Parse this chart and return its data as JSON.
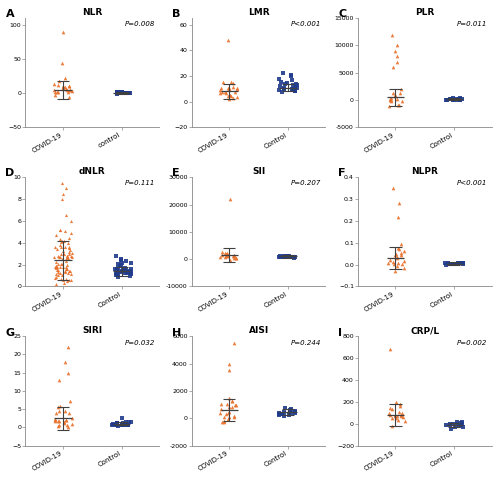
{
  "panels": [
    {
      "label": "A",
      "title": "NLR",
      "pvalue": "P=0.008",
      "ylim": [
        -50,
        110
      ],
      "yticks": [
        -50,
        0,
        50,
        100
      ],
      "groups": [
        {
          "name": "COVID-19",
          "color": "#E8702A",
          "marker": "^",
          "mean": 5,
          "sd": 13,
          "n_cluster": 20,
          "cluster_mean": 4,
          "cluster_sd": 5,
          "outliers": [
            90,
            45,
            22,
            18
          ]
        },
        {
          "name": "control",
          "color": "#1F3B8C",
          "marker": "s",
          "mean": 1,
          "sd": 1.5,
          "n_cluster": 18,
          "cluster_mean": 1,
          "cluster_sd": 0.8,
          "outliers": []
        }
      ]
    },
    {
      "label": "B",
      "title": "LMR",
      "pvalue": "P<0.001",
      "ylim": [
        -20,
        65
      ],
      "yticks": [
        -20,
        0,
        20,
        40,
        60
      ],
      "groups": [
        {
          "name": "COVID-19",
          "color": "#E8702A",
          "marker": "^",
          "mean": 8,
          "sd": 6,
          "n_cluster": 22,
          "cluster_mean": 7,
          "cluster_sd": 4,
          "outliers": [
            48
          ]
        },
        {
          "name": "Control",
          "color": "#1F3B8C",
          "marker": "s",
          "mean": 11,
          "sd": 3,
          "n_cluster": 20,
          "cluster_mean": 11,
          "cluster_sd": 2.5,
          "outliers": [
            22,
            21,
            20
          ]
        }
      ]
    },
    {
      "label": "C",
      "title": "PLR",
      "pvalue": "P=0.011",
      "ylim": [
        -5000,
        15000
      ],
      "yticks": [
        -5000,
        0,
        5000,
        10000,
        15000
      ],
      "groups": [
        {
          "name": "COVID-19",
          "color": "#E8702A",
          "marker": "^",
          "mean": 500,
          "sd": 1500,
          "n_cluster": 15,
          "cluster_mean": 400,
          "cluster_sd": 800,
          "outliers": [
            12000,
            10000,
            9000,
            8000,
            7000,
            6000
          ]
        },
        {
          "name": "Control",
          "color": "#1F3B8C",
          "marker": "s",
          "mean": 200,
          "sd": 200,
          "n_cluster": 14,
          "cluster_mean": 150,
          "cluster_sd": 150,
          "outliers": []
        }
      ]
    },
    {
      "label": "D",
      "title": "dNLR",
      "pvalue": "P=0.111",
      "ylim": [
        0,
        10
      ],
      "yticks": [
        0,
        2,
        4,
        6,
        8,
        10
      ],
      "groups": [
        {
          "name": "COVID-19",
          "color": "#E8702A",
          "marker": "^",
          "mean": 2.4,
          "sd": 1.8,
          "n_cluster": 85,
          "cluster_mean": 2.2,
          "cluster_sd": 1.5,
          "outliers": [
            9.5,
            9.0,
            8.5,
            8.0
          ]
        },
        {
          "name": "Control",
          "color": "#1F3B8C",
          "marker": "s",
          "mean": 1.4,
          "sd": 0.4,
          "n_cluster": 30,
          "cluster_mean": 1.4,
          "cluster_sd": 0.35,
          "outliers": [
            2.5,
            2.4,
            2.3
          ]
        }
      ]
    },
    {
      "label": "E",
      "title": "SII",
      "pvalue": "P=0.207",
      "ylim": [
        -10000,
        30000
      ],
      "yticks": [
        -10000,
        0,
        10000,
        20000,
        30000
      ],
      "groups": [
        {
          "name": "COVID-19",
          "color": "#E8702A",
          "marker": "^",
          "mean": 1500,
          "sd": 2500,
          "n_cluster": 18,
          "cluster_mean": 1200,
          "cluster_sd": 1200,
          "outliers": [
            22000
          ]
        },
        {
          "name": "Control",
          "color": "#1F3B8C",
          "marker": "s",
          "mean": 1000,
          "sd": 400,
          "n_cluster": 16,
          "cluster_mean": 900,
          "cluster_sd": 350,
          "outliers": []
        }
      ]
    },
    {
      "label": "F",
      "title": "NLPR",
      "pvalue": "P<0.001",
      "ylim": [
        -0.1,
        0.4
      ],
      "yticks": [
        -0.1,
        0.0,
        0.1,
        0.2,
        0.3,
        0.4
      ],
      "groups": [
        {
          "name": "COVID-19",
          "color": "#E8702A",
          "marker": "^",
          "mean": 0.03,
          "sd": 0.05,
          "n_cluster": 20,
          "cluster_mean": 0.025,
          "cluster_sd": 0.03,
          "outliers": [
            0.35,
            0.28,
            0.22
          ]
        },
        {
          "name": "Control",
          "color": "#1F3B8C",
          "marker": "s",
          "mean": 0.005,
          "sd": 0.006,
          "n_cluster": 16,
          "cluster_mean": 0.004,
          "cluster_sd": 0.004,
          "outliers": []
        }
      ]
    },
    {
      "label": "G",
      "title": "SIRI",
      "pvalue": "P=0.032",
      "ylim": [
        -5,
        25
      ],
      "yticks": [
        -5,
        0,
        5,
        10,
        15,
        20,
        25
      ],
      "groups": [
        {
          "name": "COVID-19",
          "color": "#E8702A",
          "marker": "^",
          "mean": 2.5,
          "sd": 3.2,
          "n_cluster": 22,
          "cluster_mean": 2.0,
          "cluster_sd": 2.0,
          "outliers": [
            22,
            18,
            15,
            13
          ]
        },
        {
          "name": "Control",
          "color": "#1F3B8C",
          "marker": "s",
          "mean": 1.0,
          "sd": 0.4,
          "n_cluster": 18,
          "cluster_mean": 1.0,
          "cluster_sd": 0.35,
          "outliers": [
            2.5
          ]
        }
      ]
    },
    {
      "label": "H",
      "title": "AISI",
      "pvalue": "P=0.244",
      "ylim": [
        -2000,
        6000
      ],
      "yticks": [
        -2000,
        0,
        2000,
        4000,
        6000
      ],
      "groups": [
        {
          "name": "COVID-19",
          "color": "#E8702A",
          "marker": "^",
          "mean": 600,
          "sd": 800,
          "n_cluster": 22,
          "cluster_mean": 550,
          "cluster_sd": 500,
          "outliers": [
            5500,
            4000,
            3500
          ]
        },
        {
          "name": "Control",
          "color": "#1F3B8C",
          "marker": "s",
          "mean": 450,
          "sd": 200,
          "n_cluster": 14,
          "cluster_mean": 400,
          "cluster_sd": 180,
          "outliers": [
            700
          ]
        }
      ]
    },
    {
      "label": "I",
      "title": "CRP/L",
      "pvalue": "P=0.002",
      "ylim": [
        -200,
        800
      ],
      "yticks": [
        -200,
        0,
        200,
        400,
        600,
        800
      ],
      "groups": [
        {
          "name": "COVID-19",
          "color": "#E8702A",
          "marker": "^",
          "mean": 80,
          "sd": 100,
          "n_cluster": 18,
          "cluster_mean": 70,
          "cluster_sd": 60,
          "outliers": [
            680,
            200,
            180
          ]
        },
        {
          "name": "Control",
          "color": "#1F3B8C",
          "marker": "s",
          "mean": -10,
          "sd": 20,
          "n_cluster": 14,
          "cluster_mean": -10,
          "cluster_sd": 15,
          "outliers": []
        }
      ]
    }
  ],
  "orange": "#E8702A",
  "blue": "#1F3B8C",
  "bg_color": "#FFFFFF",
  "errorbar_color": "#404040",
  "axis_line_color": "#888888"
}
